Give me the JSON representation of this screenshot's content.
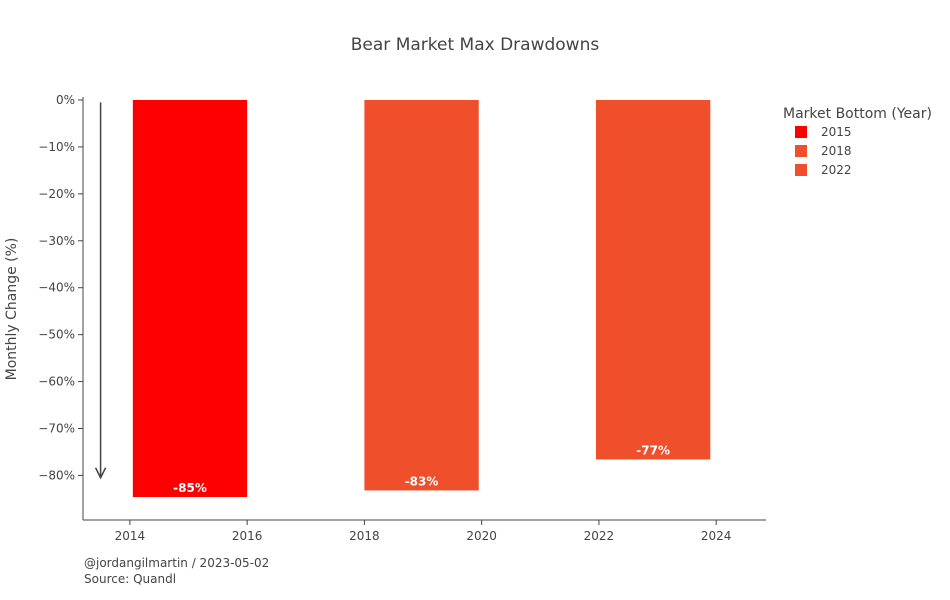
{
  "chart_data": {
    "type": "bar",
    "title": "Bear Market Max Drawdowns",
    "xlabel": "",
    "ylabel": "Monthly Change (%)",
    "x_range": [
      2013.2,
      2024.85
    ],
    "ylim": [
      -89.5,
      0
    ],
    "x_ticks": [
      2014,
      2016,
      2018,
      2020,
      2022,
      2024
    ],
    "y_ticks": [
      0,
      -10,
      -20,
      -30,
      -40,
      -50,
      -60,
      -70,
      -80
    ],
    "y_tick_labels": [
      "0%",
      "−10%",
      "−20%",
      "−30%",
      "−40%",
      "−50%",
      "−60%",
      "−70%",
      "−80%"
    ],
    "legend_title": "Market Bottom (Year)",
    "legend_position": "top-right",
    "grid": false,
    "series": [
      {
        "name": "2015",
        "x_start": 2014.05,
        "x_end": 2016.0,
        "value": -84.6,
        "label": "-85%",
        "color": "#ff0000"
      },
      {
        "name": "2018",
        "x_start": 2018.0,
        "x_end": 2019.95,
        "value": -83.2,
        "label": "-83%",
        "color": "#ef4f2b"
      },
      {
        "name": "2022",
        "x_start": 2021.95,
        "x_end": 2023.9,
        "value": -76.6,
        "label": "-77%",
        "color": "#ef4f2b"
      }
    ],
    "annotations": {
      "arrow": {
        "x": 2013.5,
        "y_from": -0.5,
        "y_to": -80.5,
        "color": "#444444"
      }
    }
  },
  "footer": {
    "credit": "@jordangilmartin / 2023-05-02",
    "source": "Source: Quandl"
  }
}
